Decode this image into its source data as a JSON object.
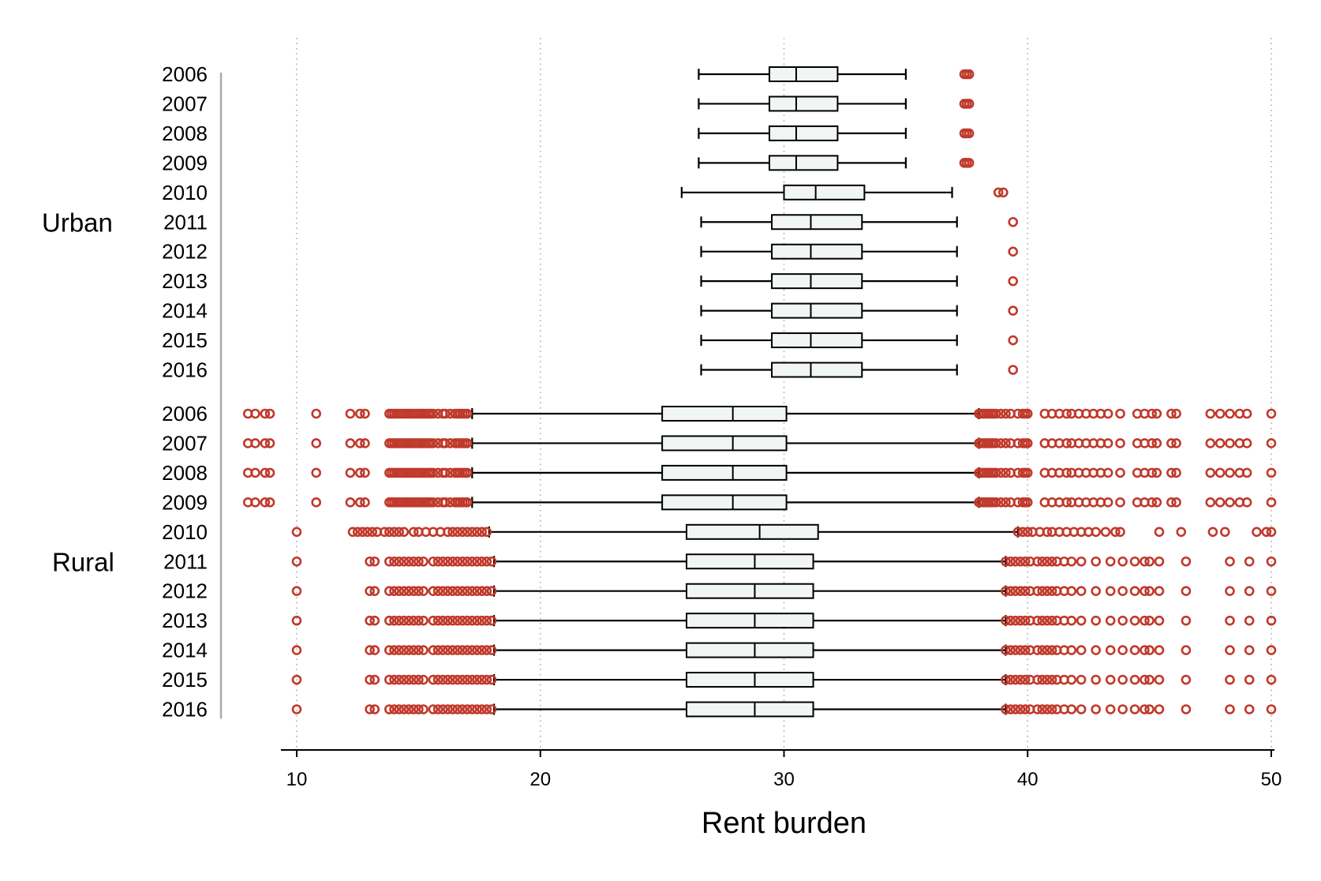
{
  "colors": {
    "box_fill": "#f1f6f5",
    "box_stroke": "#000000",
    "outlier": "#c0392b",
    "grid": "#aaaaaa",
    "axis": "#000000",
    "group_bracket": "#aaaaaa"
  },
  "chart_data": {
    "type": "boxplot",
    "orientation": "horizontal",
    "xlabel": "Rent burden",
    "xlim": [
      10,
      50
    ],
    "xticks": [
      10,
      20,
      30,
      40,
      50
    ],
    "grid": "vertical dotted lines at x ticks",
    "groups": [
      {
        "name": "Urban",
        "rows": [
          {
            "year": "2006",
            "whisker_low": 26.5,
            "q1": 29.4,
            "median": 30.5,
            "q3": 32.2,
            "whisker_high": 35.0,
            "outliers": [
              37.4,
              37.5,
              37.6
            ]
          },
          {
            "year": "2007",
            "whisker_low": 26.5,
            "q1": 29.4,
            "median": 30.5,
            "q3": 32.2,
            "whisker_high": 35.0,
            "outliers": [
              37.4,
              37.5,
              37.6
            ]
          },
          {
            "year": "2008",
            "whisker_low": 26.5,
            "q1": 29.4,
            "median": 30.5,
            "q3": 32.2,
            "whisker_high": 35.0,
            "outliers": [
              37.4,
              37.5,
              37.6
            ]
          },
          {
            "year": "2009",
            "whisker_low": 26.5,
            "q1": 29.4,
            "median": 30.5,
            "q3": 32.2,
            "whisker_high": 35.0,
            "outliers": [
              37.4,
              37.5,
              37.6
            ]
          },
          {
            "year": "2010",
            "whisker_low": 25.8,
            "q1": 30.0,
            "median": 31.3,
            "q3": 33.3,
            "whisker_high": 36.9,
            "outliers": [
              38.8,
              39.0
            ]
          },
          {
            "year": "2011",
            "whisker_low": 26.6,
            "q1": 29.5,
            "median": 31.1,
            "q3": 33.2,
            "whisker_high": 37.1,
            "outliers": [
              39.4
            ]
          },
          {
            "year": "2012",
            "whisker_low": 26.6,
            "q1": 29.5,
            "median": 31.1,
            "q3": 33.2,
            "whisker_high": 37.1,
            "outliers": [
              39.4
            ]
          },
          {
            "year": "2013",
            "whisker_low": 26.6,
            "q1": 29.5,
            "median": 31.1,
            "q3": 33.2,
            "whisker_high": 37.1,
            "outliers": [
              39.4
            ]
          },
          {
            "year": "2014",
            "whisker_low": 26.6,
            "q1": 29.5,
            "median": 31.1,
            "q3": 33.2,
            "whisker_high": 37.1,
            "outliers": [
              39.4
            ]
          },
          {
            "year": "2015",
            "whisker_low": 26.6,
            "q1": 29.5,
            "median": 31.1,
            "q3": 33.2,
            "whisker_high": 37.1,
            "outliers": [
              39.4
            ]
          },
          {
            "year": "2016",
            "whisker_low": 26.6,
            "q1": 29.5,
            "median": 31.1,
            "q3": 33.2,
            "whisker_high": 37.1,
            "outliers": [
              39.4
            ]
          }
        ]
      },
      {
        "name": "Rural",
        "rows": [
          {
            "year": "2006",
            "whisker_low": 17.2,
            "q1": 25.0,
            "median": 27.9,
            "q3": 30.1,
            "whisker_high": 38.0,
            "outliers": [
              8.0,
              8.3,
              8.7,
              8.9,
              10.8,
              12.2,
              12.6,
              12.8,
              13.8,
              13.9,
              14.0,
              14.1,
              14.2,
              14.3,
              14.4,
              14.5,
              14.6,
              14.7,
              14.8,
              14.9,
              15.0,
              15.1,
              15.2,
              15.3,
              15.4,
              15.5,
              15.6,
              15.8,
              16.0,
              16.1,
              16.3,
              16.5,
              16.6,
              16.7,
              16.8,
              16.9,
              17.0,
              38.0,
              38.1,
              38.2,
              38.3,
              38.4,
              38.5,
              38.6,
              38.7,
              38.9,
              39.1,
              39.3,
              39.6,
              39.8,
              39.9,
              40.0,
              40.7,
              41.0,
              41.3,
              41.6,
              41.8,
              42.1,
              42.4,
              42.7,
              43.0,
              43.3,
              43.8,
              44.5,
              44.8,
              45.1,
              45.3,
              45.9,
              46.1,
              47.5,
              47.9,
              48.3,
              48.7,
              49.0,
              50.0
            ]
          },
          {
            "year": "2007",
            "whisker_low": 17.2,
            "q1": 25.0,
            "median": 27.9,
            "q3": 30.1,
            "whisker_high": 38.0,
            "outliers": [
              8.0,
              8.3,
              8.7,
              8.9,
              10.8,
              12.2,
              12.6,
              12.8,
              13.8,
              13.9,
              14.0,
              14.1,
              14.2,
              14.3,
              14.4,
              14.5,
              14.6,
              14.7,
              14.8,
              14.9,
              15.0,
              15.1,
              15.2,
              15.3,
              15.4,
              15.5,
              15.6,
              15.8,
              16.0,
              16.1,
              16.3,
              16.5,
              16.6,
              16.7,
              16.8,
              16.9,
              17.0,
              38.0,
              38.1,
              38.2,
              38.3,
              38.4,
              38.5,
              38.6,
              38.7,
              38.9,
              39.1,
              39.3,
              39.6,
              39.8,
              39.9,
              40.0,
              40.7,
              41.0,
              41.3,
              41.6,
              41.8,
              42.1,
              42.4,
              42.7,
              43.0,
              43.3,
              43.8,
              44.5,
              44.8,
              45.1,
              45.3,
              45.9,
              46.1,
              47.5,
              47.9,
              48.3,
              48.7,
              49.0,
              50.0
            ]
          },
          {
            "year": "2008",
            "whisker_low": 17.2,
            "q1": 25.0,
            "median": 27.9,
            "q3": 30.1,
            "whisker_high": 38.0,
            "outliers": [
              8.0,
              8.3,
              8.7,
              8.9,
              10.8,
              12.2,
              12.6,
              12.8,
              13.8,
              13.9,
              14.0,
              14.1,
              14.2,
              14.3,
              14.4,
              14.5,
              14.6,
              14.7,
              14.8,
              14.9,
              15.0,
              15.1,
              15.2,
              15.3,
              15.4,
              15.5,
              15.6,
              15.8,
              16.0,
              16.1,
              16.3,
              16.5,
              16.6,
              16.7,
              16.8,
              16.9,
              17.0,
              38.0,
              38.1,
              38.2,
              38.3,
              38.4,
              38.5,
              38.6,
              38.7,
              38.9,
              39.1,
              39.3,
              39.6,
              39.8,
              39.9,
              40.0,
              40.7,
              41.0,
              41.3,
              41.6,
              41.8,
              42.1,
              42.4,
              42.7,
              43.0,
              43.3,
              43.8,
              44.5,
              44.8,
              45.1,
              45.3,
              45.9,
              46.1,
              47.5,
              47.9,
              48.3,
              48.7,
              49.0,
              50.0
            ]
          },
          {
            "year": "2009",
            "whisker_low": 17.2,
            "q1": 25.0,
            "median": 27.9,
            "q3": 30.1,
            "whisker_high": 38.0,
            "outliers": [
              8.0,
              8.3,
              8.7,
              8.9,
              10.8,
              12.2,
              12.6,
              12.8,
              13.8,
              13.9,
              14.0,
              14.1,
              14.2,
              14.3,
              14.4,
              14.5,
              14.6,
              14.7,
              14.8,
              14.9,
              15.0,
              15.1,
              15.2,
              15.3,
              15.4,
              15.5,
              15.6,
              15.8,
              16.0,
              16.1,
              16.3,
              16.5,
              16.6,
              16.7,
              16.8,
              16.9,
              17.0,
              38.0,
              38.1,
              38.2,
              38.3,
              38.4,
              38.5,
              38.6,
              38.7,
              38.9,
              39.1,
              39.3,
              39.6,
              39.8,
              39.9,
              40.0,
              40.7,
              41.0,
              41.3,
              41.6,
              41.8,
              42.1,
              42.4,
              42.7,
              43.0,
              43.3,
              43.8,
              44.5,
              44.8,
              45.1,
              45.3,
              45.9,
              46.1,
              47.5,
              47.9,
              48.3,
              48.7,
              49.0,
              50.0
            ]
          },
          {
            "year": "2010",
            "whisker_low": 17.9,
            "q1": 26.0,
            "median": 29.0,
            "q3": 31.4,
            "whisker_high": 39.6,
            "outliers": [
              10.0,
              12.3,
              12.5,
              12.7,
              12.9,
              13.1,
              13.3,
              13.6,
              13.8,
              14.0,
              14.2,
              14.4,
              14.8,
              15.0,
              15.3,
              15.6,
              15.9,
              16.2,
              16.4,
              16.6,
              16.8,
              17.0,
              17.2,
              17.4,
              17.6,
              17.8,
              39.6,
              39.8,
              40.0,
              40.2,
              40.5,
              40.8,
              41.0,
              41.3,
              41.6,
              41.9,
              42.2,
              42.5,
              42.8,
              43.2,
              43.6,
              43.8,
              45.4,
              46.3,
              47.6,
              48.1,
              49.4,
              49.8,
              50.0
            ]
          },
          {
            "year": "2011",
            "whisker_low": 18.1,
            "q1": 26.0,
            "median": 28.8,
            "q3": 31.2,
            "whisker_high": 39.1,
            "outliers": [
              10.0,
              13.0,
              13.2,
              13.8,
              14.0,
              14.2,
              14.4,
              14.6,
              14.8,
              15.0,
              15.2,
              15.6,
              15.8,
              16.0,
              16.2,
              16.4,
              16.6,
              16.8,
              17.0,
              17.2,
              17.4,
              17.6,
              17.8,
              18.0,
              39.1,
              39.3,
              39.5,
              39.7,
              39.9,
              40.1,
              40.4,
              40.6,
              40.8,
              41.0,
              41.2,
              41.5,
              41.8,
              42.2,
              42.8,
              43.4,
              43.9,
              44.4,
              44.8,
              45.0,
              45.4,
              46.5,
              48.3,
              49.1,
              50.0
            ]
          },
          {
            "year": "2012",
            "whisker_low": 18.1,
            "q1": 26.0,
            "median": 28.8,
            "q3": 31.2,
            "whisker_high": 39.1,
            "outliers": [
              10.0,
              13.0,
              13.2,
              13.8,
              14.0,
              14.2,
              14.4,
              14.6,
              14.8,
              15.0,
              15.2,
              15.6,
              15.8,
              16.0,
              16.2,
              16.4,
              16.6,
              16.8,
              17.0,
              17.2,
              17.4,
              17.6,
              17.8,
              18.0,
              39.1,
              39.3,
              39.5,
              39.7,
              39.9,
              40.1,
              40.4,
              40.6,
              40.8,
              41.0,
              41.2,
              41.5,
              41.8,
              42.2,
              42.8,
              43.4,
              43.9,
              44.4,
              44.8,
              45.0,
              45.4,
              46.5,
              48.3,
              49.1,
              50.0
            ]
          },
          {
            "year": "2013",
            "whisker_low": 18.1,
            "q1": 26.0,
            "median": 28.8,
            "q3": 31.2,
            "whisker_high": 39.1,
            "outliers": [
              10.0,
              13.0,
              13.2,
              13.8,
              14.0,
              14.2,
              14.4,
              14.6,
              14.8,
              15.0,
              15.2,
              15.6,
              15.8,
              16.0,
              16.2,
              16.4,
              16.6,
              16.8,
              17.0,
              17.2,
              17.4,
              17.6,
              17.8,
              18.0,
              39.1,
              39.3,
              39.5,
              39.7,
              39.9,
              40.1,
              40.4,
              40.6,
              40.8,
              41.0,
              41.2,
              41.5,
              41.8,
              42.2,
              42.8,
              43.4,
              43.9,
              44.4,
              44.8,
              45.0,
              45.4,
              46.5,
              48.3,
              49.1,
              50.0
            ]
          },
          {
            "year": "2014",
            "whisker_low": 18.1,
            "q1": 26.0,
            "median": 28.8,
            "q3": 31.2,
            "whisker_high": 39.1,
            "outliers": [
              10.0,
              13.0,
              13.2,
              13.8,
              14.0,
              14.2,
              14.4,
              14.6,
              14.8,
              15.0,
              15.2,
              15.6,
              15.8,
              16.0,
              16.2,
              16.4,
              16.6,
              16.8,
              17.0,
              17.2,
              17.4,
              17.6,
              17.8,
              18.0,
              39.1,
              39.3,
              39.5,
              39.7,
              39.9,
              40.1,
              40.4,
              40.6,
              40.8,
              41.0,
              41.2,
              41.5,
              41.8,
              42.2,
              42.8,
              43.4,
              43.9,
              44.4,
              44.8,
              45.0,
              45.4,
              46.5,
              48.3,
              49.1,
              50.0
            ]
          },
          {
            "year": "2015",
            "whisker_low": 18.1,
            "q1": 26.0,
            "median": 28.8,
            "q3": 31.2,
            "whisker_high": 39.1,
            "outliers": [
              10.0,
              13.0,
              13.2,
              13.8,
              14.0,
              14.2,
              14.4,
              14.6,
              14.8,
              15.0,
              15.2,
              15.6,
              15.8,
              16.0,
              16.2,
              16.4,
              16.6,
              16.8,
              17.0,
              17.2,
              17.4,
              17.6,
              17.8,
              18.0,
              39.1,
              39.3,
              39.5,
              39.7,
              39.9,
              40.1,
              40.4,
              40.6,
              40.8,
              41.0,
              41.2,
              41.5,
              41.8,
              42.2,
              42.8,
              43.4,
              43.9,
              44.4,
              44.8,
              45.0,
              45.4,
              46.5,
              48.3,
              49.1,
              50.0
            ]
          },
          {
            "year": "2016",
            "whisker_low": 18.1,
            "q1": 26.0,
            "median": 28.8,
            "q3": 31.2,
            "whisker_high": 39.1,
            "outliers": [
              10.0,
              13.0,
              13.2,
              13.8,
              14.0,
              14.2,
              14.4,
              14.6,
              14.8,
              15.0,
              15.2,
              15.6,
              15.8,
              16.0,
              16.2,
              16.4,
              16.6,
              16.8,
              17.0,
              17.2,
              17.4,
              17.6,
              17.8,
              18.0,
              39.1,
              39.3,
              39.5,
              39.7,
              39.9,
              40.1,
              40.4,
              40.6,
              40.8,
              41.0,
              41.2,
              41.5,
              41.8,
              42.2,
              42.8,
              43.4,
              43.9,
              44.4,
              44.8,
              45.0,
              45.4,
              46.5,
              48.3,
              49.1,
              50.0
            ]
          }
        ]
      }
    ]
  }
}
